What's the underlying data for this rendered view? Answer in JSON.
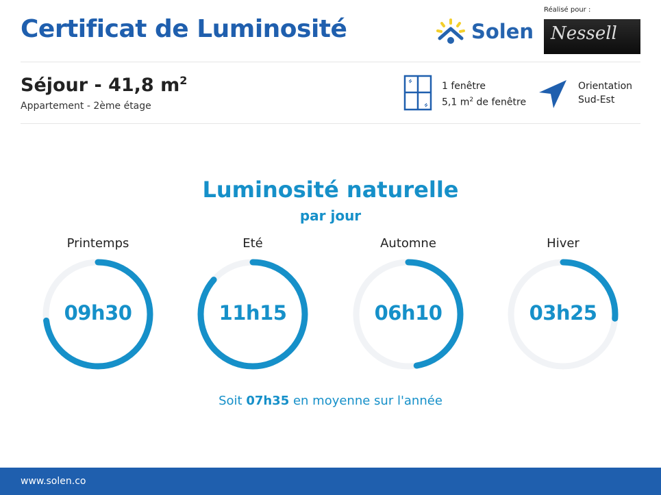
{
  "header": {
    "title": "Certificat de Luminosité",
    "brand": "Solen",
    "realise_label": "Réalisé pour :",
    "client_logo": "nessell"
  },
  "room": {
    "name": "Séjour - 41,8 m",
    "superscript": "2",
    "subtitle": "Appartement - 2ème étage"
  },
  "windows": {
    "icon": "window-icon",
    "count": "1 fenêtre",
    "area": "5,1 m",
    "area_sup": "2",
    "area_suffix": " de fenêtre"
  },
  "orientation": {
    "icon": "compass-arrow-icon",
    "label": "Orientation",
    "value": "Sud-Est"
  },
  "main": {
    "heading": "Luminosité naturelle",
    "subheading": "par jour",
    "seasons": [
      {
        "label": "Printemps",
        "value": "09h30",
        "fraction": 0.73
      },
      {
        "label": "Eté",
        "value": "11h15",
        "fraction": 0.865
      },
      {
        "label": "Automne",
        "value": "06h10",
        "fraction": 0.474
      },
      {
        "label": "Hiver",
        "value": "03h25",
        "fraction": 0.263
      }
    ],
    "average_prefix": "Soit ",
    "average_value": "07h35",
    "average_suffix": " en moyenne sur l'année"
  },
  "footer": {
    "url": "www.solen.co"
  },
  "colors": {
    "title": "#1f5fae",
    "accent": "#1690c9",
    "track": "#f1f3f6",
    "footer": "#1f5fae"
  }
}
